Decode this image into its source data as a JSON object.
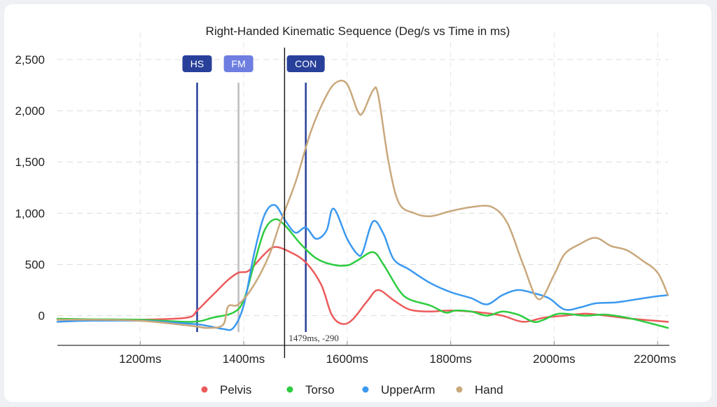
{
  "chart_data": {
    "type": "line",
    "title": "Right-Handed Kinematic Sequence (Deg/s vs Time in ms)",
    "xlabel": "",
    "ylabel": "",
    "xlim": [
      1040,
      2220
    ],
    "ylim": [
      -290,
      2630
    ],
    "x_ticks": [
      1200,
      1400,
      1600,
      1800,
      2000,
      2200
    ],
    "x_tick_labels": [
      "1200ms",
      "1400ms",
      "1600ms",
      "1800ms",
      "2000ms",
      "2200ms"
    ],
    "y_ticks": [
      0,
      500,
      1000,
      1500,
      2000,
      2500
    ],
    "y_tick_labels": [
      "0",
      "500",
      "1,000",
      "1,500",
      "2,000",
      "2,500"
    ],
    "grid": true,
    "legend_position": "bottom",
    "series": [
      {
        "name": "Pelvis",
        "color": "#ec5b5b",
        "points": [
          [
            1040,
            -40
          ],
          [
            1100,
            -40
          ],
          [
            1200,
            -40
          ],
          [
            1290,
            -20
          ],
          [
            1310,
            50
          ],
          [
            1330,
            150
          ],
          [
            1350,
            250
          ],
          [
            1370,
            350
          ],
          [
            1390,
            420
          ],
          [
            1410,
            440
          ],
          [
            1440,
            600
          ],
          [
            1460,
            670
          ],
          [
            1490,
            620
          ],
          [
            1520,
            520
          ],
          [
            1550,
            300
          ],
          [
            1570,
            10
          ],
          [
            1590,
            -80
          ],
          [
            1610,
            -40
          ],
          [
            1640,
            150
          ],
          [
            1660,
            250
          ],
          [
            1690,
            150
          ],
          [
            1720,
            60
          ],
          [
            1760,
            40
          ],
          [
            1800,
            50
          ],
          [
            1860,
            30
          ],
          [
            1900,
            0
          ],
          [
            1940,
            -60
          ],
          [
            1980,
            -20
          ],
          [
            2020,
            0
          ],
          [
            2060,
            20
          ],
          [
            2100,
            0
          ],
          [
            2150,
            -30
          ],
          [
            2220,
            -60
          ]
        ]
      },
      {
        "name": "Torso",
        "color": "#2ecc40",
        "points": [
          [
            1040,
            -30
          ],
          [
            1100,
            -35
          ],
          [
            1200,
            -40
          ],
          [
            1300,
            -60
          ],
          [
            1340,
            -20
          ],
          [
            1380,
            30
          ],
          [
            1400,
            150
          ],
          [
            1420,
            500
          ],
          [
            1440,
            830
          ],
          [
            1460,
            940
          ],
          [
            1480,
            880
          ],
          [
            1510,
            700
          ],
          [
            1540,
            560
          ],
          [
            1570,
            500
          ],
          [
            1600,
            490
          ],
          [
            1620,
            540
          ],
          [
            1650,
            620
          ],
          [
            1670,
            500
          ],
          [
            1700,
            250
          ],
          [
            1720,
            160
          ],
          [
            1760,
            100
          ],
          [
            1790,
            30
          ],
          [
            1810,
            50
          ],
          [
            1840,
            40
          ],
          [
            1870,
            0
          ],
          [
            1900,
            40
          ],
          [
            1930,
            10
          ],
          [
            1960,
            -60
          ],
          [
            1980,
            -40
          ],
          [
            2010,
            20
          ],
          [
            2060,
            0
          ],
          [
            2100,
            10
          ],
          [
            2150,
            -30
          ],
          [
            2220,
            -120
          ]
        ]
      },
      {
        "name": "UpperArm",
        "color": "#3b99f0",
        "points": [
          [
            1040,
            -60
          ],
          [
            1100,
            -50
          ],
          [
            1200,
            -50
          ],
          [
            1300,
            -80
          ],
          [
            1330,
            -100
          ],
          [
            1360,
            -130
          ],
          [
            1380,
            -120
          ],
          [
            1400,
            100
          ],
          [
            1420,
            600
          ],
          [
            1440,
            980
          ],
          [
            1460,
            1080
          ],
          [
            1480,
            930
          ],
          [
            1500,
            810
          ],
          [
            1520,
            860
          ],
          [
            1540,
            750
          ],
          [
            1560,
            830
          ],
          [
            1570,
            1030
          ],
          [
            1580,
            1000
          ],
          [
            1600,
            750
          ],
          [
            1620,
            600
          ],
          [
            1630,
            620
          ],
          [
            1650,
            920
          ],
          [
            1670,
            800
          ],
          [
            1690,
            550
          ],
          [
            1720,
            450
          ],
          [
            1760,
            320
          ],
          [
            1800,
            230
          ],
          [
            1840,
            170
          ],
          [
            1870,
            110
          ],
          [
            1900,
            200
          ],
          [
            1930,
            250
          ],
          [
            1960,
            220
          ],
          [
            1990,
            170
          ],
          [
            2020,
            60
          ],
          [
            2050,
            80
          ],
          [
            2080,
            120
          ],
          [
            2120,
            130
          ],
          [
            2160,
            160
          ],
          [
            2200,
            190
          ],
          [
            2220,
            200
          ]
        ]
      },
      {
        "name": "Hand",
        "color": "#c9a87c",
        "points": [
          [
            1040,
            -40
          ],
          [
            1100,
            -40
          ],
          [
            1200,
            -50
          ],
          [
            1300,
            -100
          ],
          [
            1330,
            -120
          ],
          [
            1360,
            -90
          ],
          [
            1370,
            90
          ],
          [
            1390,
            110
          ],
          [
            1420,
            300
          ],
          [
            1450,
            600
          ],
          [
            1470,
            900
          ],
          [
            1500,
            1300
          ],
          [
            1530,
            1800
          ],
          [
            1560,
            2150
          ],
          [
            1580,
            2280
          ],
          [
            1600,
            2260
          ],
          [
            1620,
            2000
          ],
          [
            1630,
            1980
          ],
          [
            1650,
            2200
          ],
          [
            1660,
            2150
          ],
          [
            1680,
            1500
          ],
          [
            1700,
            1100
          ],
          [
            1730,
            1000
          ],
          [
            1760,
            970
          ],
          [
            1800,
            1020
          ],
          [
            1840,
            1060
          ],
          [
            1880,
            1060
          ],
          [
            1910,
            900
          ],
          [
            1940,
            500
          ],
          [
            1970,
            160
          ],
          [
            2000,
            400
          ],
          [
            2020,
            600
          ],
          [
            2050,
            700
          ],
          [
            2080,
            760
          ],
          [
            2110,
            680
          ],
          [
            2140,
            640
          ],
          [
            2170,
            540
          ],
          [
            2200,
            420
          ],
          [
            2220,
            200
          ]
        ]
      }
    ],
    "markers": [
      {
        "label": "HS",
        "x": 1310,
        "color": "#28409a"
      },
      {
        "label": "FM",
        "x": 1390,
        "color": "#6e7ee0"
      },
      {
        "label": "CON",
        "x": 1520,
        "color": "#28409a"
      }
    ],
    "cursor": {
      "x": 1479,
      "label": "1479ms, -290"
    }
  }
}
